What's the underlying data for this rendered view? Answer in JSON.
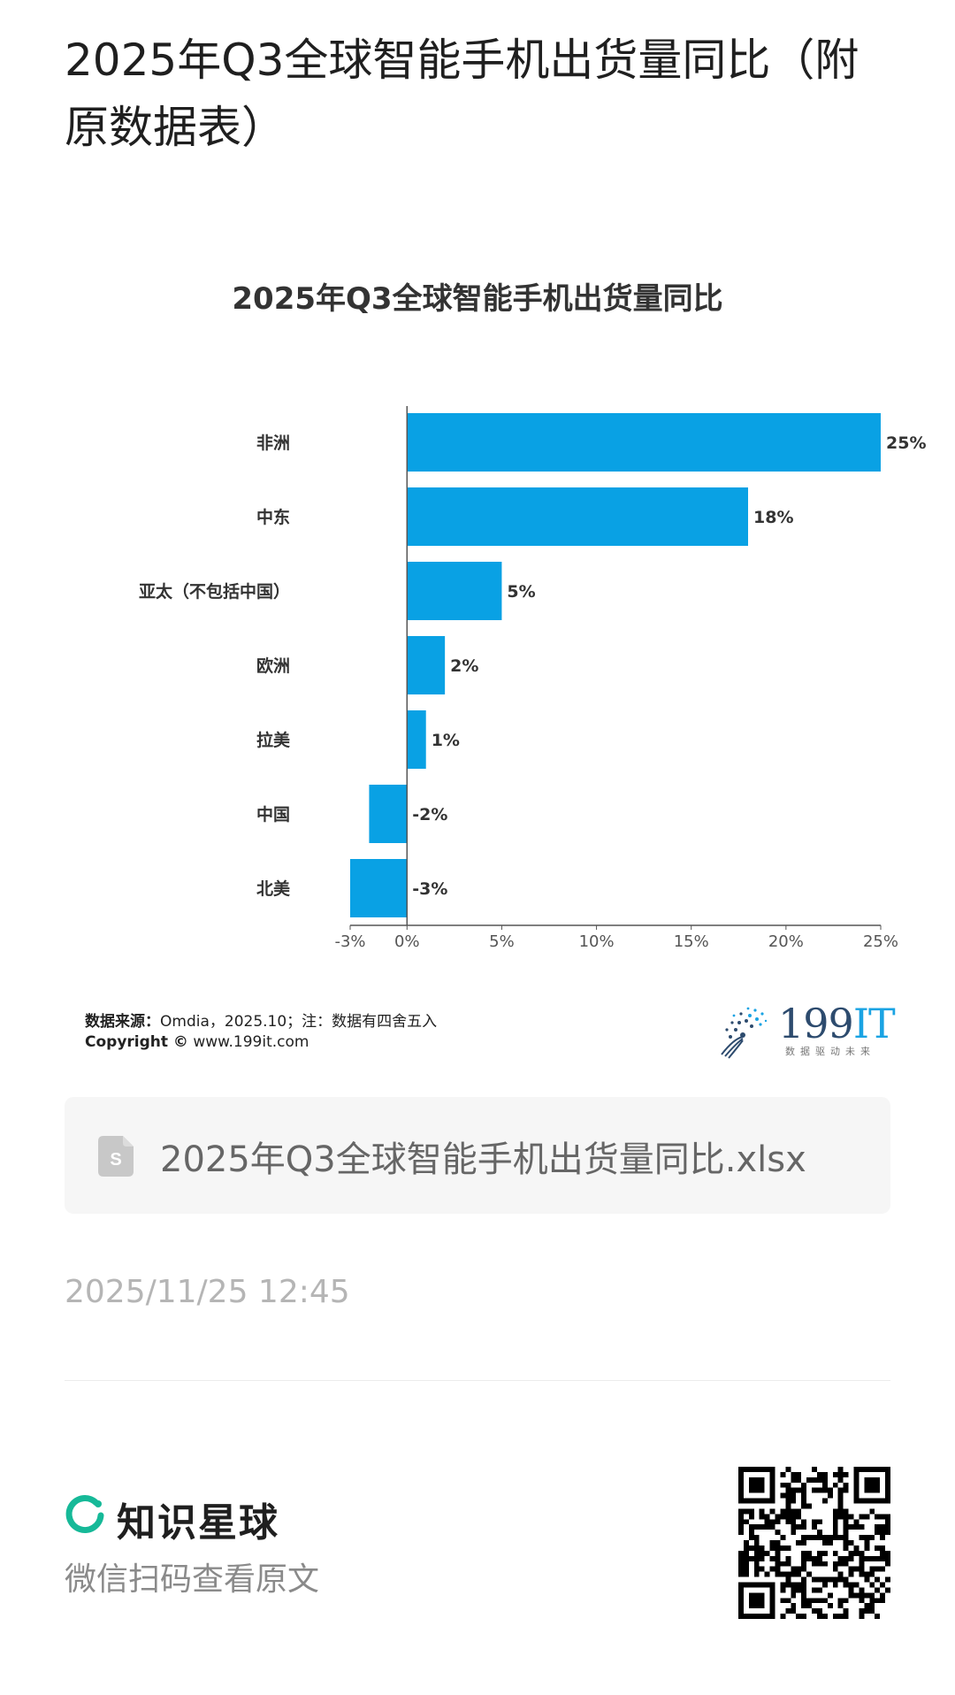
{
  "page": {
    "title": "2025年Q3全球智能手机出货量同比（附原数据表）"
  },
  "chart_data": {
    "type": "bar",
    "orientation": "horizontal",
    "title": "2025年Q3全球智能手机出货量同比",
    "categories": [
      "非洲",
      "中东",
      "亚太（不包括中国）",
      "欧洲",
      "拉美",
      "中国",
      "北美"
    ],
    "values": [
      25,
      18,
      5,
      2,
      1,
      -2,
      -3
    ],
    "value_labels": [
      "25%",
      "18%",
      "5%",
      "2%",
      "1%",
      "-2%",
      "-3%"
    ],
    "xlim": [
      -3,
      25
    ],
    "x_ticks": [
      -3,
      0,
      5,
      10,
      15,
      20,
      25
    ],
    "x_tick_labels": [
      "-3%",
      "0%",
      "5%",
      "10%",
      "15%",
      "20%",
      "25%"
    ],
    "bar_color": "#09a1e4",
    "grid": false,
    "legend": "none"
  },
  "chart_footer": {
    "source_label": "数据来源：",
    "source_text": "Omdia，2025.10；注：数据有四舍五入",
    "copyright_label": "Copyright ©",
    "copyright_text": "www.199it.com",
    "brand_main": "199",
    "brand_it": "IT",
    "brand_slogan": "数据驱动未来"
  },
  "attachment": {
    "icon": "spreadsheet-file-icon",
    "file_name": "2025年Q3全球智能手机出货量同比.xlsx"
  },
  "meta": {
    "timestamp": "2025/11/25 12:45"
  },
  "footer": {
    "logo_icon": "planet-ring-icon",
    "app_name": "知识星球",
    "scan_hint": "微信扫码查看原文",
    "qr_icon": "qr-code-icon",
    "accent_color": "#16b998"
  }
}
